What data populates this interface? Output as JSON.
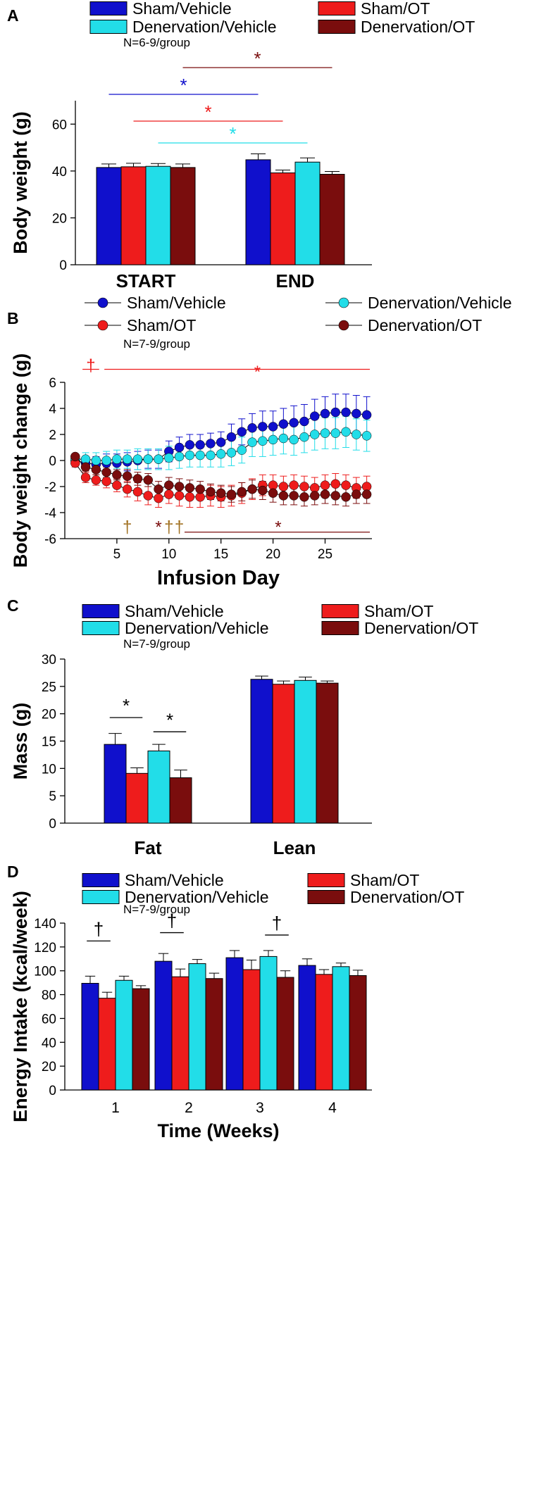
{
  "colors": {
    "sham_vehicle": "#1010cc",
    "sham_ot": "#ee1c1c",
    "denervation_vehicle": "#22dde8",
    "denervation_ot": "#7a0d0d",
    "black": "#000000",
    "dagger_brown": "#a07020"
  },
  "chart_data": [
    {
      "panel": "A",
      "type": "bar",
      "ylabel": "Body weight (g)",
      "ylim": [
        0,
        70
      ],
      "yticks": [
        0,
        20,
        40,
        60
      ],
      "categories": [
        "START",
        "END"
      ],
      "series": [
        {
          "name": "Sham/Vehicle",
          "color_key": "sham_vehicle",
          "values": [
            41.5,
            44.8
          ],
          "errors": [
            1.5,
            2.5
          ]
        },
        {
          "name": "Sham/OT",
          "color_key": "sham_ot",
          "values": [
            41.8,
            39.2
          ],
          "errors": [
            1.5,
            1.2
          ]
        },
        {
          "name": "Denervation/Vehicle",
          "color_key": "denervation_vehicle",
          "values": [
            42.0,
            43.8
          ],
          "errors": [
            1.2,
            1.8
          ]
        },
        {
          "name": "Denervation/OT",
          "color_key": "denervation_ot",
          "values": [
            41.5,
            38.6
          ],
          "errors": [
            1.5,
            1.2
          ]
        }
      ],
      "note": "N=6-9/group",
      "significance": [
        {
          "symbol": "*",
          "color_key": "denervation_ot",
          "from": [
            0,
            3
          ],
          "to": [
            1,
            3
          ]
        },
        {
          "symbol": "*",
          "color_key": "sham_vehicle",
          "from": [
            0,
            0
          ],
          "to": [
            1,
            0
          ]
        },
        {
          "symbol": "*",
          "color_key": "sham_ot",
          "from": [
            0,
            1
          ],
          "to": [
            1,
            1
          ]
        },
        {
          "symbol": "*",
          "color_key": "denervation_vehicle",
          "from": [
            0,
            2
          ],
          "to": [
            1,
            2
          ]
        }
      ]
    },
    {
      "panel": "B",
      "type": "line",
      "xlabel": "Infusion Day",
      "ylabel": "Body weight change (g)",
      "xlim": [
        0,
        29.5
      ],
      "ylim": [
        -6,
        6
      ],
      "xticks": [
        5,
        10,
        15,
        20,
        25
      ],
      "yticks": [
        -6,
        -4,
        -2,
        0,
        2,
        4,
        6
      ],
      "x": [
        1,
        2,
        3,
        4,
        5,
        6,
        7,
        8,
        9,
        10,
        11,
        12,
        13,
        14,
        15,
        16,
        17,
        18,
        19,
        20,
        21,
        22,
        23,
        24,
        25,
        26,
        27,
        28,
        29
      ],
      "series": [
        {
          "name": "Sham/Vehicle",
          "color_key": "sham_vehicle",
          "values": [
            0.0,
            -0.2,
            -0.3,
            -0.2,
            -0.2,
            -0.1,
            0.0,
            0.1,
            0.1,
            0.7,
            1.0,
            1.2,
            1.2,
            1.3,
            1.4,
            1.8,
            2.2,
            2.5,
            2.6,
            2.6,
            2.8,
            2.9,
            3.0,
            3.4,
            3.6,
            3.7,
            3.7,
            3.6,
            3.5
          ],
          "errors": [
            0.2,
            0.5,
            0.6,
            0.7,
            0.7,
            0.7,
            0.7,
            0.7,
            0.7,
            0.8,
            0.8,
            0.8,
            0.8,
            0.8,
            0.8,
            1.0,
            1.0,
            1.1,
            1.2,
            1.2,
            1.2,
            1.3,
            1.3,
            1.3,
            1.3,
            1.4,
            1.4,
            1.4,
            1.4
          ]
        },
        {
          "name": "Denervation/Vehicle",
          "color_key": "denervation_vehicle",
          "values": [
            0.1,
            0.1,
            0.0,
            0.0,
            0.1,
            0.1,
            0.1,
            0.1,
            0.1,
            0.2,
            0.3,
            0.4,
            0.4,
            0.4,
            0.5,
            0.6,
            0.8,
            1.4,
            1.5,
            1.6,
            1.7,
            1.6,
            1.8,
            2.0,
            2.1,
            2.1,
            2.2,
            2.0,
            1.9
          ],
          "errors": [
            0.3,
            0.5,
            0.6,
            0.7,
            0.7,
            0.7,
            0.8,
            0.8,
            0.8,
            0.9,
            0.9,
            0.9,
            0.9,
            0.9,
            1.0,
            1.0,
            1.0,
            1.1,
            1.2,
            1.2,
            1.2,
            1.2,
            1.2,
            1.2,
            1.2,
            1.2,
            1.2,
            1.2,
            1.2
          ]
        },
        {
          "name": "Sham/OT",
          "color_key": "sham_ot",
          "values": [
            -0.2,
            -1.3,
            -1.5,
            -1.6,
            -1.9,
            -2.2,
            -2.4,
            -2.7,
            -2.9,
            -2.6,
            -2.7,
            -2.8,
            -2.8,
            -2.7,
            -2.8,
            -2.7,
            -2.5,
            -2.2,
            -1.9,
            -1.9,
            -2.0,
            -1.9,
            -2.0,
            -2.1,
            -1.9,
            -1.8,
            -1.9,
            -2.1,
            -2.0
          ],
          "errors": [
            0.3,
            0.4,
            0.4,
            0.5,
            0.5,
            0.6,
            0.7,
            0.7,
            0.7,
            0.7,
            0.8,
            0.8,
            0.8,
            0.8,
            0.8,
            0.8,
            0.8,
            0.8,
            0.8,
            0.8,
            0.8,
            0.8,
            0.8,
            0.8,
            0.8,
            0.8,
            0.8,
            0.8,
            0.8
          ]
        },
        {
          "name": "Denervation/OT",
          "color_key": "denervation_ot",
          "values": [
            0.3,
            -0.5,
            -0.7,
            -0.9,
            -1.1,
            -1.2,
            -1.4,
            -1.5,
            -2.2,
            -1.9,
            -2.0,
            -2.1,
            -2.2,
            -2.4,
            -2.5,
            -2.6,
            -2.4,
            -2.2,
            -2.3,
            -2.5,
            -2.7,
            -2.7,
            -2.8,
            -2.7,
            -2.6,
            -2.7,
            -2.8,
            -2.6,
            -2.6
          ],
          "errors": [
            0.2,
            0.3,
            0.4,
            0.4,
            0.4,
            0.5,
            0.5,
            0.5,
            0.6,
            0.6,
            0.6,
            0.6,
            0.6,
            0.6,
            0.6,
            0.6,
            0.7,
            0.7,
            0.7,
            0.7,
            0.7,
            0.7,
            0.7,
            0.7,
            0.7,
            0.7,
            0.7,
            0.7,
            0.7
          ]
        }
      ],
      "note": "N=7-9/group",
      "annotations": [
        {
          "symbol": "†",
          "color_key": "sham_ot",
          "x": 2.5,
          "y": 7.3
        },
        {
          "symbol": "*",
          "color_key": "sham_ot",
          "x": 18.5,
          "y": 6.8
        },
        {
          "symbol": "†",
          "color_key": "dagger_brown",
          "x": 6,
          "y": -5.1
        },
        {
          "symbol": "*",
          "color_key": "denervation_ot",
          "x": 9,
          "y": -5.1
        },
        {
          "symbol": "†",
          "color_key": "dagger_brown",
          "x": 10,
          "y": -5.1
        },
        {
          "symbol": "†",
          "color_key": "dagger_brown",
          "x": 11,
          "y": -5.1
        },
        {
          "symbol": "*",
          "color_key": "denervation_ot",
          "x": 20.5,
          "y": -5.1
        }
      ],
      "sig_lines": [
        {
          "color_key": "sham_ot",
          "x1": 1.7,
          "x2": 3.3,
          "y": 7.0
        },
        {
          "color_key": "sham_ot",
          "x1": 3.8,
          "x2": 29.3,
          "y": 7.0
        },
        {
          "color_key": "denervation_ot",
          "x1": 11.5,
          "x2": 29.3,
          "y": -5.5
        }
      ]
    },
    {
      "panel": "C",
      "type": "bar",
      "ylabel": "Mass (g)",
      "ylim": [
        0,
        30
      ],
      "yticks": [
        0,
        5,
        10,
        15,
        20,
        25,
        30
      ],
      "categories": [
        "Fat",
        "Lean"
      ],
      "series": [
        {
          "name": "Sham/Vehicle",
          "color_key": "sham_vehicle",
          "values": [
            14.4,
            26.3
          ],
          "errors": [
            2.0,
            0.6
          ]
        },
        {
          "name": "Sham/OT",
          "color_key": "sham_ot",
          "values": [
            9.1,
            25.4
          ],
          "errors": [
            1.0,
            0.6
          ]
        },
        {
          "name": "Denervation/Vehicle",
          "color_key": "denervation_vehicle",
          "values": [
            13.2,
            26.1
          ],
          "errors": [
            1.2,
            0.6
          ]
        },
        {
          "name": "Denervation/OT",
          "color_key": "denervation_ot",
          "values": [
            8.3,
            25.6
          ],
          "errors": [
            1.4,
            0.4
          ]
        }
      ],
      "note": "N=7-9/group",
      "significance": [
        {
          "symbol": "*",
          "color_key": "black",
          "category": 0,
          "bars": [
            0,
            1
          ],
          "y": 19.3
        },
        {
          "symbol": "*",
          "color_key": "black",
          "category": 0,
          "bars": [
            2,
            3
          ],
          "y": 16.7
        }
      ]
    },
    {
      "panel": "D",
      "type": "bar",
      "xlabel": "Time (Weeks)",
      "ylabel": "Energy Intake (kcal/week)",
      "ylim": [
        0,
        140
      ],
      "yticks": [
        0,
        20,
        40,
        60,
        80,
        100,
        120,
        140
      ],
      "categories": [
        "1",
        "2",
        "3",
        "4"
      ],
      "series": [
        {
          "name": "Sham/Vehicle",
          "color_key": "sham_vehicle",
          "values": [
            89.5,
            108.0,
            111.0,
            104.5
          ],
          "errors": [
            6.0,
            6.5,
            6.0,
            5.5
          ]
        },
        {
          "name": "Sham/OT",
          "color_key": "sham_ot",
          "values": [
            77.0,
            95.0,
            101.0,
            97.0
          ],
          "errors": [
            5.0,
            6.5,
            8.0,
            4.0
          ]
        },
        {
          "name": "Denervation/Vehicle",
          "color_key": "denervation_vehicle",
          "values": [
            92.0,
            106.0,
            112.0,
            103.5
          ],
          "errors": [
            3.5,
            3.5,
            5.0,
            3.0
          ]
        },
        {
          "name": "Denervation/OT",
          "color_key": "denervation_ot",
          "values": [
            85.0,
            93.5,
            94.5,
            96.0
          ],
          "errors": [
            2.5,
            4.5,
            5.5,
            4.5
          ]
        }
      ],
      "note": "N=7-9/group",
      "significance": [
        {
          "symbol": "†",
          "color_key": "black",
          "category": 0,
          "bars": [
            0,
            1
          ],
          "y": 125
        },
        {
          "symbol": "†",
          "color_key": "black",
          "category": 1,
          "bars": [
            0,
            1
          ],
          "y": 132
        },
        {
          "symbol": "†",
          "color_key": "black",
          "category": 2,
          "bars": [
            2,
            3
          ],
          "y": 130
        }
      ]
    }
  ]
}
